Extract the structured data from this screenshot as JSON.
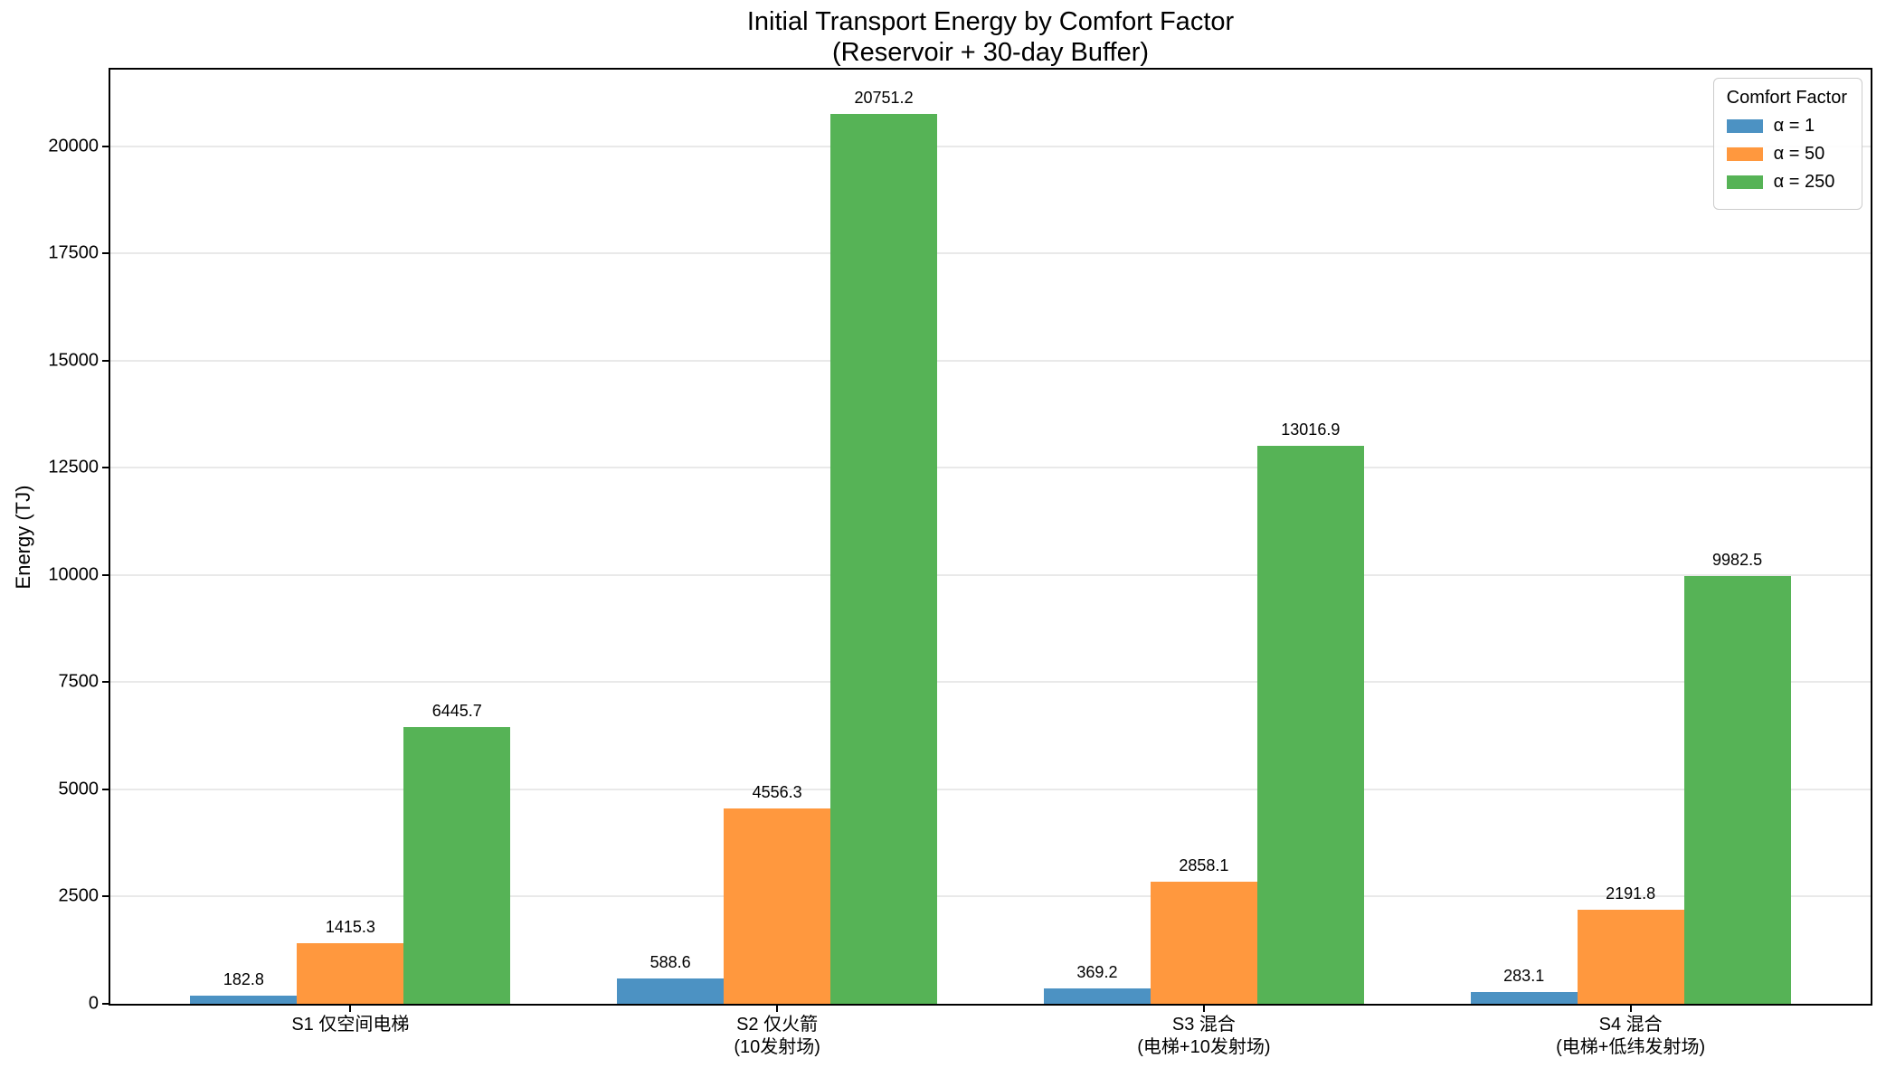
{
  "chart_data": {
    "type": "bar",
    "title": "Initial Transport Energy by Comfort Factor",
    "subtitle": "(Reservoir + 30-day Buffer)",
    "xlabel": "",
    "ylabel": "Energy (TJ)",
    "categories": [
      "S1 仅空间电梯",
      "S2 仅火箭\n(10发射场)",
      "S3 混合\n(电梯+10发射场)",
      "S4 混合\n(电梯+低纬发射场)"
    ],
    "series": [
      {
        "name": "α = 1",
        "color": "#4C92C3",
        "values": [
          182.8,
          588.6,
          369.2,
          283.1
        ]
      },
      {
        "name": "α = 50",
        "color": "#FF983E",
        "values": [
          1415.3,
          4556.3,
          2858.1,
          2191.8
        ]
      },
      {
        "name": "α = 250",
        "color": "#56B356",
        "values": [
          6445.7,
          20751.2,
          13016.9,
          9982.5
        ]
      }
    ],
    "yticks": [
      0,
      2500,
      5000,
      7500,
      10000,
      12500,
      15000,
      17500,
      20000
    ],
    "ylim": [
      0,
      21789
    ],
    "grid": true,
    "bar_labels": true,
    "legend": {
      "title": "Comfort Factor",
      "position": "upper right"
    }
  }
}
